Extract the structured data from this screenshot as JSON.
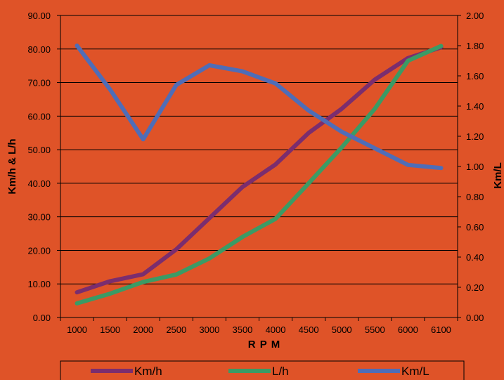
{
  "chart_data": {
    "type": "line",
    "title": "",
    "xlabel": "R P M",
    "ylabel_left": "Km/h & L/h",
    "ylabel_right": "Km/L",
    "categories": [
      "1000",
      "1500",
      "2000",
      "2500",
      "3000",
      "3500",
      "4000",
      "4500",
      "5000",
      "5500",
      "6000",
      "6100"
    ],
    "ylim_left": [
      0,
      90
    ],
    "yticks_left": [
      "0.00",
      "10.00",
      "20.00",
      "30.00",
      "40.00",
      "50.00",
      "60.00",
      "70.00",
      "80.00",
      "90.00"
    ],
    "ylim_right": [
      0,
      2.0
    ],
    "yticks_right": [
      "0.00",
      "0.20",
      "0.40",
      "0.60",
      "0.80",
      "1.00",
      "1.20",
      "1.40",
      "1.60",
      "1.80",
      "2.00"
    ],
    "grid": "horizontal",
    "legend_position": "bottom",
    "series": [
      {
        "name": "Km/h",
        "axis": "left",
        "color": "#7b2d6e",
        "values": [
          7.5,
          10.8,
          12.9,
          20.3,
          29.6,
          38.9,
          45.6,
          55.0,
          62.2,
          70.9,
          77.3,
          80.5
        ]
      },
      {
        "name": "L/h",
        "axis": "left",
        "color": "#3b9b65",
        "values": [
          4.2,
          7.1,
          10.6,
          12.8,
          17.6,
          24.0,
          29.4,
          40.0,
          50.7,
          62.2,
          76.5,
          80.9
        ]
      },
      {
        "name": "Km/L",
        "axis": "right",
        "color": "#4f6db7",
        "values": [
          1.8,
          1.51,
          1.18,
          1.54,
          1.67,
          1.63,
          1.55,
          1.37,
          1.23,
          1.12,
          1.01,
          0.99
        ]
      }
    ]
  }
}
